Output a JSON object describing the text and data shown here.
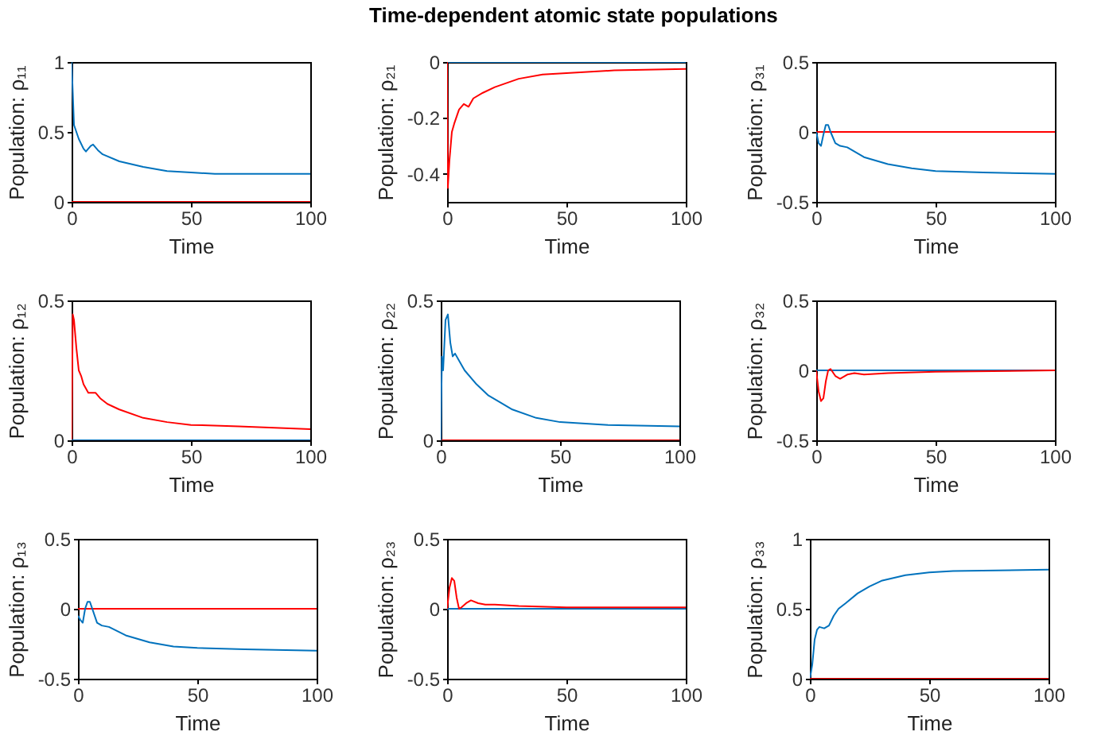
{
  "chart_data": [
    {
      "type": "line",
      "xlabel": "Time",
      "ylabel": "Population: ρ₁₁",
      "xlim": [
        0,
        100
      ],
      "xticks": [
        0,
        50,
        100
      ],
      "ylim": [
        0,
        1
      ],
      "yticks": [
        0,
        0.5,
        1
      ],
      "series": [
        {
          "color": "#0072bd",
          "x": [
            0,
            0.5,
            1,
            3,
            5,
            6,
            8,
            9,
            11,
            13,
            20,
            30,
            40,
            50,
            60,
            80,
            100
          ],
          "values": [
            1,
            0.78,
            0.55,
            0.45,
            0.38,
            0.36,
            0.4,
            0.41,
            0.37,
            0.34,
            0.29,
            0.25,
            0.22,
            0.21,
            0.2,
            0.2,
            0.2
          ]
        },
        {
          "color": "#ff0000",
          "x": [
            0,
            100
          ],
          "values": [
            0,
            0
          ]
        }
      ]
    },
    {
      "type": "line",
      "title": "Time-dependent atomic state populations",
      "xlabel": "Time",
      "ylabel": "Population: ρ₂₁",
      "xlim": [
        0,
        100
      ],
      "xticks": [
        0,
        50,
        100
      ],
      "ylim": [
        -0.5,
        0
      ],
      "yticks": [
        -0.4,
        -0.2,
        0
      ],
      "series": [
        {
          "color": "#0072bd",
          "x": [
            0,
            100
          ],
          "values": [
            0,
            0
          ]
        },
        {
          "color": "#ff0000",
          "x": [
            0,
            0.3,
            1,
            2,
            3,
            5,
            7,
            9,
            11,
            15,
            20,
            30,
            40,
            50,
            70,
            100
          ],
          "values": [
            0,
            -0.45,
            -0.35,
            -0.25,
            -0.22,
            -0.17,
            -0.15,
            -0.16,
            -0.13,
            -0.11,
            -0.09,
            -0.06,
            -0.045,
            -0.04,
            -0.03,
            -0.025
          ]
        }
      ]
    },
    {
      "type": "line",
      "xlabel": "Time",
      "ylabel": "Population: ρ₃₁",
      "xlim": [
        0,
        100
      ],
      "xticks": [
        0,
        50,
        100
      ],
      "ylim": [
        -0.5,
        0.5
      ],
      "yticks": [
        -0.5,
        0,
        0.5
      ],
      "series": [
        {
          "color": "#ff0000",
          "x": [
            0,
            100
          ],
          "values": [
            0,
            0
          ]
        },
        {
          "color": "#0072bd",
          "x": [
            0,
            1,
            2,
            3,
            4,
            5,
            6,
            8,
            10,
            13,
            20,
            30,
            40,
            50,
            70,
            100
          ],
          "values": [
            0,
            -0.08,
            -0.1,
            -0.02,
            0.05,
            0.05,
            0,
            -0.08,
            -0.1,
            -0.11,
            -0.18,
            -0.23,
            -0.26,
            -0.28,
            -0.29,
            -0.3
          ]
        }
      ]
    },
    {
      "type": "line",
      "xlabel": "Time",
      "ylabel": "Population: ρ₁₂",
      "xlim": [
        0,
        100
      ],
      "xticks": [
        0,
        50,
        100
      ],
      "ylim": [
        0,
        0.5
      ],
      "yticks": [
        0,
        0.5
      ],
      "series": [
        {
          "color": "#ff0000",
          "x": [
            0,
            0.5,
            1,
            2,
            3,
            4,
            5,
            7,
            9,
            10,
            12,
            15,
            20,
            30,
            40,
            50,
            70,
            100
          ],
          "values": [
            0,
            0.45,
            0.43,
            0.33,
            0.25,
            0.23,
            0.2,
            0.17,
            0.17,
            0.17,
            0.15,
            0.13,
            0.11,
            0.08,
            0.065,
            0.055,
            0.05,
            0.04
          ]
        },
        {
          "color": "#0072bd",
          "x": [
            0,
            100
          ],
          "values": [
            0,
            0
          ]
        }
      ]
    },
    {
      "type": "line",
      "xlabel": "Time",
      "ylabel": "Population: ρ₂₂",
      "xlim": [
        0,
        100
      ],
      "xticks": [
        0,
        50,
        100
      ],
      "ylim": [
        0,
        0.5
      ],
      "yticks": [
        0,
        0.5
      ],
      "series": [
        {
          "color": "#ff0000",
          "x": [
            0,
            100
          ],
          "values": [
            0,
            0
          ]
        },
        {
          "color": "#0072bd",
          "x": [
            0,
            0.5,
            1,
            2,
            3,
            4,
            5,
            6,
            8,
            10,
            15,
            20,
            30,
            40,
            50,
            70,
            100
          ],
          "values": [
            0,
            0.3,
            0.25,
            0.43,
            0.45,
            0.35,
            0.3,
            0.31,
            0.28,
            0.25,
            0.2,
            0.16,
            0.11,
            0.08,
            0.065,
            0.055,
            0.05
          ]
        }
      ]
    },
    {
      "type": "line",
      "xlabel": "Time",
      "ylabel": "Population: ρ₃₂",
      "xlim": [
        0,
        100
      ],
      "xticks": [
        0,
        50,
        100
      ],
      "ylim": [
        -0.5,
        0.5
      ],
      "yticks": [
        -0.5,
        0,
        0.5
      ],
      "series": [
        {
          "color": "#0072bd",
          "x": [
            0,
            100
          ],
          "values": [
            0,
            0
          ]
        },
        {
          "color": "#ff0000",
          "x": [
            0,
            1,
            2,
            3,
            4,
            5,
            6,
            8,
            10,
            13,
            16,
            20,
            30,
            50,
            100
          ],
          "values": [
            0,
            -0.15,
            -0.22,
            -0.2,
            -0.08,
            0,
            0.01,
            -0.04,
            -0.06,
            -0.03,
            -0.02,
            -0.03,
            -0.02,
            -0.01,
            0
          ]
        }
      ]
    },
    {
      "type": "line",
      "xlabel": "Time",
      "ylabel": "Population: ρ₁₃",
      "xlim": [
        0,
        100
      ],
      "xticks": [
        0,
        50,
        100
      ],
      "ylim": [
        -0.5,
        0.5
      ],
      "yticks": [
        -0.5,
        0,
        0.5
      ],
      "series": [
        {
          "color": "#ff0000",
          "x": [
            0,
            100
          ],
          "values": [
            0,
            0
          ]
        },
        {
          "color": "#0072bd",
          "x": [
            0,
            1,
            2,
            3,
            4,
            5,
            6,
            8,
            10,
            13,
            20,
            30,
            40,
            50,
            70,
            100
          ],
          "values": [
            -0.05,
            -0.08,
            -0.1,
            0,
            0.05,
            0.05,
            0,
            -0.1,
            -0.12,
            -0.13,
            -0.19,
            -0.24,
            -0.27,
            -0.28,
            -0.29,
            -0.3
          ]
        }
      ]
    },
    {
      "type": "line",
      "xlabel": "Time",
      "ylabel": "Population: ρ₂₃",
      "xlim": [
        0,
        100
      ],
      "xticks": [
        0,
        50,
        100
      ],
      "ylim": [
        -0.5,
        0.5
      ],
      "yticks": [
        -0.5,
        0,
        0.5
      ],
      "series": [
        {
          "color": "#0072bd",
          "x": [
            0,
            100
          ],
          "values": [
            0,
            0
          ]
        },
        {
          "color": "#ff0000",
          "x": [
            0,
            1,
            2,
            3,
            4,
            5,
            6,
            8,
            10,
            13,
            16,
            20,
            30,
            50,
            100
          ],
          "values": [
            0,
            0.15,
            0.22,
            0.2,
            0.08,
            0,
            0.01,
            0.04,
            0.06,
            0.04,
            0.03,
            0.03,
            0.02,
            0.01,
            0.01
          ]
        }
      ]
    },
    {
      "type": "line",
      "xlabel": "Time",
      "ylabel": "Population: ρ₃₃",
      "xlim": [
        0,
        100
      ],
      "xticks": [
        0,
        50,
        100
      ],
      "ylim": [
        0,
        1
      ],
      "yticks": [
        0,
        0.5,
        1
      ],
      "series": [
        {
          "color": "#0072bd",
          "x": [
            0,
            1,
            2,
            3,
            4,
            6,
            8,
            10,
            12,
            15,
            20,
            25,
            30,
            40,
            50,
            60,
            100
          ],
          "values": [
            0,
            0.1,
            0.28,
            0.35,
            0.37,
            0.36,
            0.38,
            0.45,
            0.5,
            0.54,
            0.61,
            0.66,
            0.7,
            0.74,
            0.76,
            0.77,
            0.78
          ]
        },
        {
          "color": "#ff0000",
          "x": [
            0,
            100
          ],
          "values": [
            0,
            0
          ]
        }
      ]
    }
  ]
}
